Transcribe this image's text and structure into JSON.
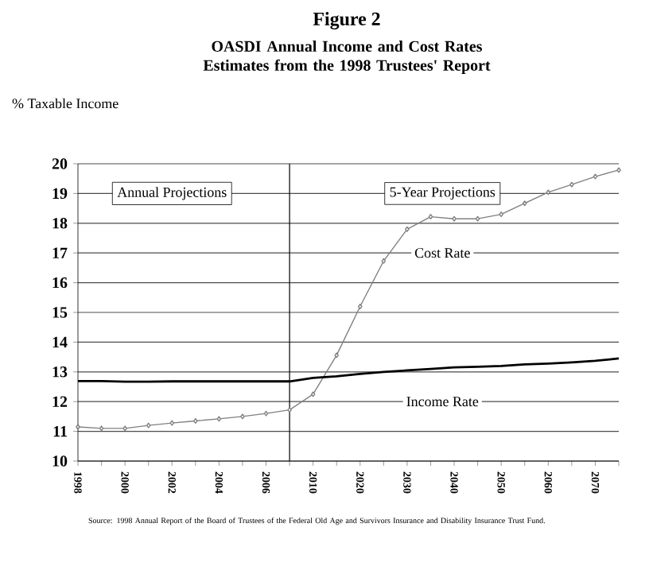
{
  "chart_data": {
    "type": "line",
    "title": "Figure 2",
    "subtitle": "OASDI Annual Income and Cost Rates Estimates from the 1998 Trustees' Report",
    "ylabel": "% Taxable Income",
    "categories": [
      "1998",
      null,
      "2000",
      null,
      "2002",
      null,
      "2004",
      null,
      "2006",
      null,
      "2010",
      null,
      "2020",
      null,
      "2030",
      null,
      "2040",
      null,
      "2050",
      null,
      "2060",
      null,
      "2070",
      null
    ],
    "series": [
      {
        "name": "Cost Rate",
        "color": "#808080",
        "marker": "diamond",
        "values": [
          11.15,
          11.1,
          11.1,
          11.2,
          11.28,
          11.35,
          11.42,
          11.5,
          11.6,
          11.72,
          12.25,
          13.56,
          15.2,
          16.73,
          17.8,
          18.22,
          18.15,
          18.15,
          18.3,
          18.67,
          19.04,
          19.3,
          19.57,
          19.79
        ]
      },
      {
        "name": "Income Rate",
        "color": "#000000",
        "marker": "none",
        "values": [
          12.69,
          12.69,
          12.67,
          12.67,
          12.68,
          12.68,
          12.68,
          12.68,
          12.68,
          12.68,
          12.8,
          12.85,
          12.93,
          13.0,
          13.05,
          13.1,
          13.15,
          13.17,
          13.2,
          13.25,
          13.28,
          13.32,
          13.37,
          13.45
        ]
      }
    ],
    "ylim": [
      10,
      20
    ],
    "yticks": [
      10,
      11,
      12,
      13,
      14,
      15,
      16,
      17,
      18,
      19,
      20
    ],
    "grid": "y",
    "legend": false,
    "line_style": "solid",
    "annotations": [
      "Annual Projections",
      "5-Year Projections",
      "Source: 1998 Annual Report of the Board of Trustees of the Federal Old Age and Survivors Insurance and Disability Insurance Trust Fund."
    ]
  }
}
